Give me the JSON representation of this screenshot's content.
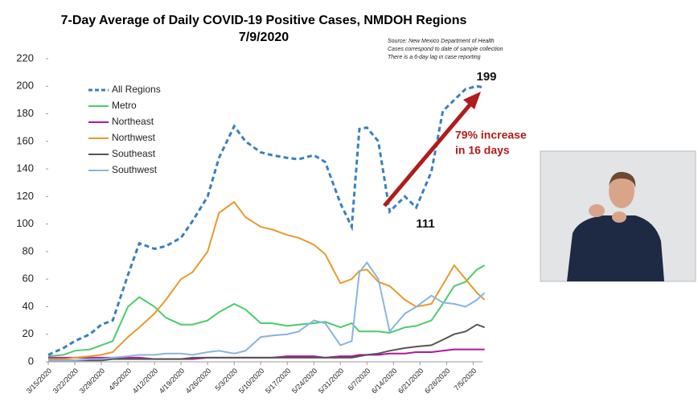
{
  "chart_data": {
    "type": "line",
    "title": "7-Day Average of Daily COVID-19 Positive Cases, NMDOH Regions",
    "subtitle": "7/9/2020",
    "source_notes": [
      "Source: New Mexico Department of Health",
      "Cases correspond to date of sample collection",
      "There is a 6-day lag in case reporting"
    ],
    "annotations": [
      "199",
      "111",
      "79% increase",
      "in 16 days"
    ],
    "x": [
      "3/15/2020",
      "3/19/2020",
      "3/22/2020",
      "3/26/2020",
      "3/29/2020",
      "4/1/2020",
      "4/5/2020",
      "4/8/2020",
      "4/12/2020",
      "4/15/2020",
      "4/19/2020",
      "4/22/2020",
      "4/26/2020",
      "4/29/2020",
      "5/3/2020",
      "5/6/2020",
      "5/10/2020",
      "5/13/2020",
      "5/17/2020",
      "5/20/2020",
      "5/24/2020",
      "5/27/2020",
      "5/31/2020",
      "6/3/2020",
      "6/5/2020",
      "6/7/2020",
      "6/10/2020",
      "6/13/2020",
      "6/17/2020",
      "6/20/2020",
      "6/24/2020",
      "6/27/2020",
      "6/30/2020",
      "7/3/2020",
      "7/6/2020",
      "7/8/2020"
    ],
    "series": [
      {
        "name": "All Regions",
        "color": "#3b7fc0",
        "dashed": true,
        "values": [
          5,
          10,
          15,
          20,
          27,
          30,
          63,
          86,
          82,
          84,
          90,
          102,
          120,
          148,
          171,
          160,
          152,
          150,
          148,
          147,
          150,
          145,
          115,
          98,
          169,
          170,
          160,
          109,
          120,
          112,
          138,
          182,
          190,
          198,
          200,
          199
        ]
      },
      {
        "name": "Metro",
        "color": "#4ccc6a",
        "values": [
          4,
          5,
          8,
          9,
          12,
          15,
          40,
          47,
          40,
          32,
          27,
          27,
          30,
          36,
          42,
          38,
          28,
          28,
          26,
          27,
          28,
          29,
          25,
          28,
          22,
          22,
          22,
          21,
          25,
          26,
          30,
          42,
          55,
          58,
          67,
          70
        ]
      },
      {
        "name": "Northeast",
        "color": "#b0179f",
        "values": [
          3,
          3,
          3,
          3,
          3,
          3,
          3,
          3,
          2,
          2,
          2,
          2,
          3,
          3,
          3,
          3,
          3,
          3,
          4,
          4,
          4,
          3,
          4,
          4,
          5,
          5,
          5,
          6,
          6,
          7,
          7,
          8,
          9,
          9,
          9,
          9
        ]
      },
      {
        "name": "Northwest",
        "color": "#e89a2c",
        "values": [
          2,
          2,
          3,
          4,
          5,
          7,
          18,
          25,
          35,
          45,
          60,
          65,
          80,
          108,
          116,
          105,
          98,
          96,
          92,
          90,
          85,
          78,
          57,
          60,
          66,
          67,
          58,
          55,
          45,
          40,
          42,
          56,
          70,
          60,
          50,
          45
        ]
      },
      {
        "name": "Southeast",
        "color": "#555555",
        "values": [
          1,
          1,
          1,
          1,
          1,
          2,
          2,
          2,
          2,
          2,
          2,
          3,
          3,
          3,
          3,
          3,
          3,
          3,
          3,
          3,
          3,
          3,
          3,
          3,
          4,
          5,
          6,
          8,
          10,
          11,
          12,
          16,
          20,
          22,
          27,
          25
        ]
      },
      {
        "name": "Southwest",
        "color": "#8ab4e0",
        "values": [
          1,
          1,
          1,
          2,
          2,
          3,
          4,
          5,
          5,
          6,
          6,
          5,
          7,
          8,
          6,
          8,
          18,
          19,
          20,
          22,
          30,
          28,
          12,
          15,
          65,
          72,
          60,
          22,
          35,
          40,
          48,
          43,
          42,
          40,
          45,
          50
        ]
      }
    ],
    "xlim": [
      "3/15/2020",
      "7/10/2020"
    ],
    "xticks": [
      "3/15/2020",
      "3/22/2020",
      "3/29/2020",
      "4/5/2020",
      "4/12/2020",
      "4/19/2020",
      "4/26/2020",
      "5/3/2020",
      "5/10/2020",
      "5/17/2020",
      "5/24/2020",
      "5/31/2020",
      "6/7/2020",
      "6/14/2020",
      "6/21/2020",
      "6/28/2020",
      "7/5/2020"
    ],
    "ylim": [
      0,
      220
    ],
    "yticks": [
      0,
      20,
      40,
      60,
      80,
      100,
      120,
      140,
      160,
      180,
      200,
      220
    ],
    "annotation_color": "#b01c1c"
  }
}
